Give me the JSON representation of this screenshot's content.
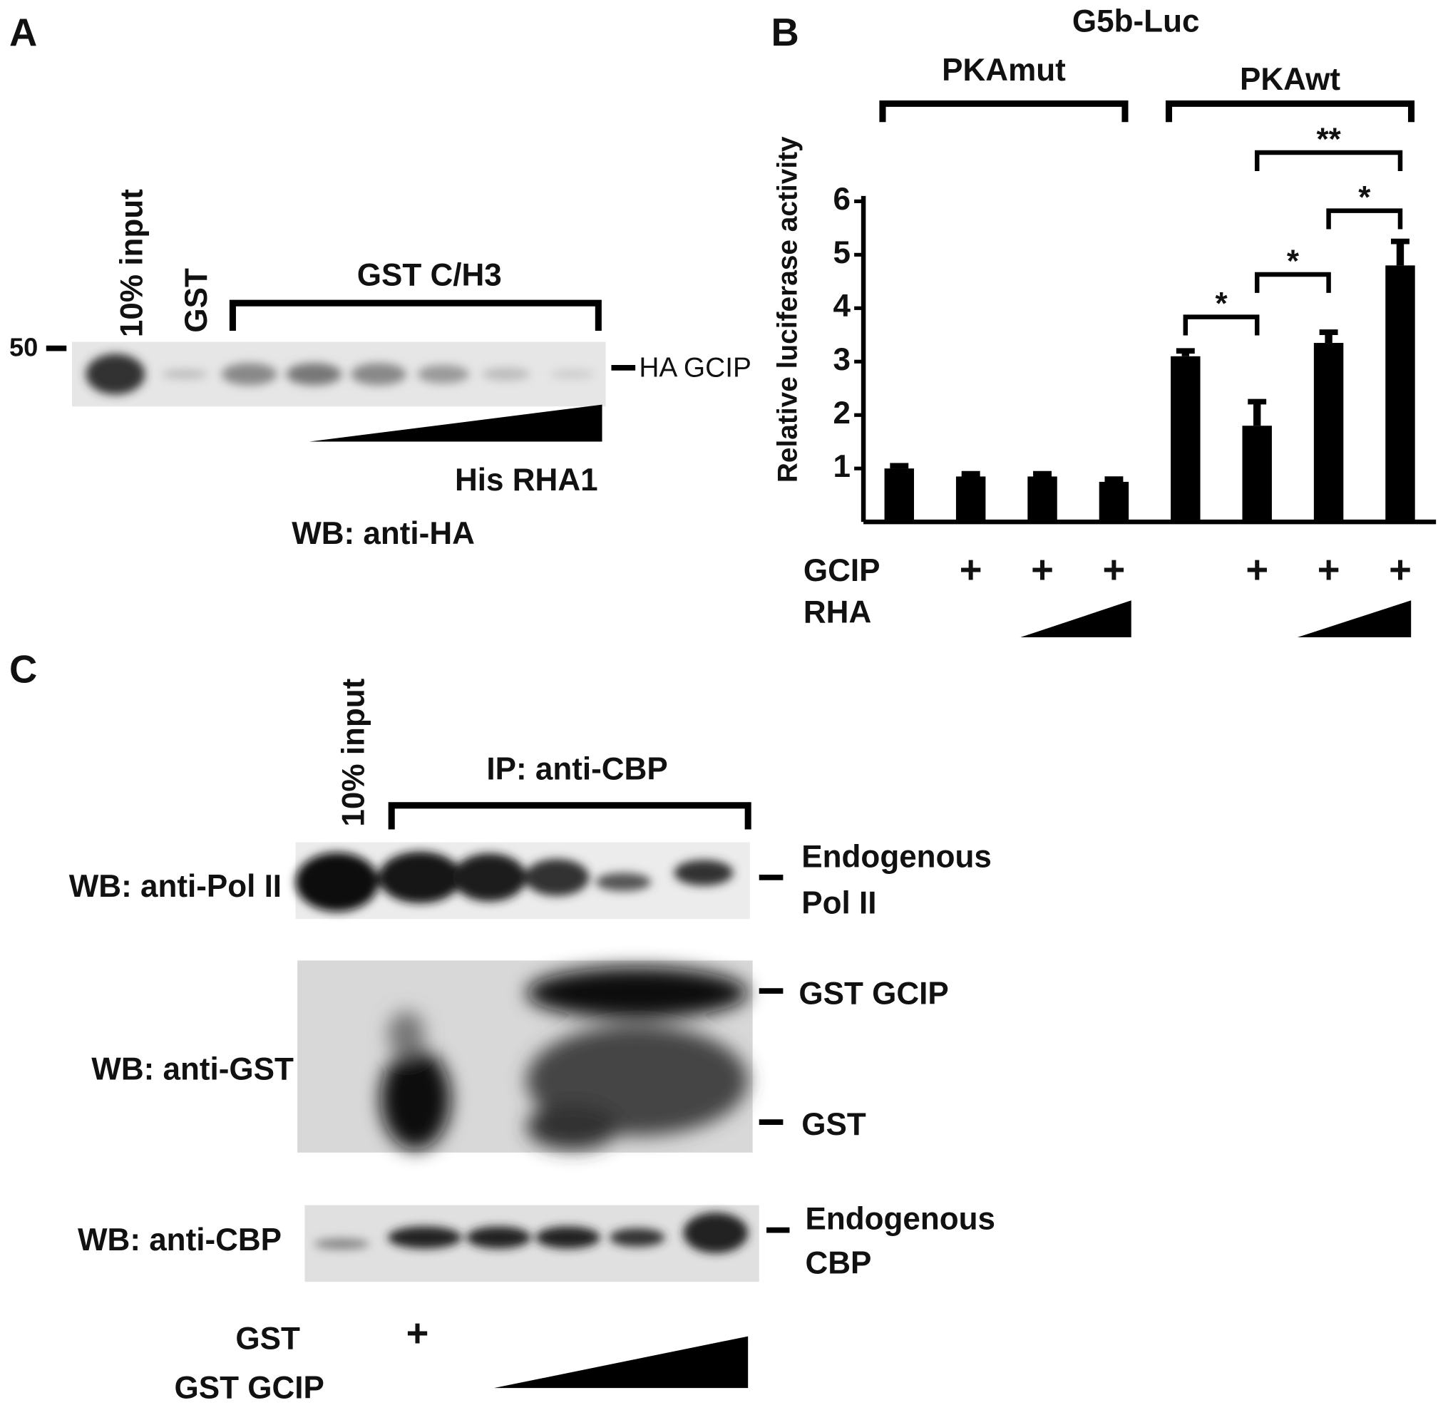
{
  "panel_a": {
    "label": "A",
    "lane_input": "10% input",
    "lane_gst": "GST",
    "bracket": "GST C/H3",
    "marker": "50",
    "band": "HA GCIP",
    "gradient": "His RHA1",
    "blot": "WB: anti-HA"
  },
  "chart_data": {
    "type": "bar",
    "panel": "B",
    "title": "G5b-Luc",
    "ylabel": "Relative luciferase activity",
    "groups": [
      {
        "name": "PKAmut",
        "bars": [
          0,
          3
        ]
      },
      {
        "name": "PKAwt",
        "bars": [
          4,
          7
        ]
      }
    ],
    "values": [
      1.0,
      0.85,
      0.85,
      0.75,
      3.1,
      1.8,
      3.35,
      4.8
    ],
    "errors": [
      0.05,
      0.05,
      0.05,
      0.05,
      0.1,
      0.45,
      0.2,
      0.45
    ],
    "color": "#000000",
    "ylim": [
      0,
      6.1
    ],
    "yticks": [
      1,
      2,
      3,
      4,
      5,
      6
    ],
    "rows": [
      {
        "name": "GCIP",
        "marks": [
          null,
          "+",
          "+",
          "+",
          null,
          "+",
          "+",
          "+"
        ]
      },
      {
        "name": "RHA"
      }
    ],
    "significance": [
      {
        "label": "*",
        "bars": [
          4,
          5
        ]
      },
      {
        "label": "*",
        "bars": [
          5,
          6
        ]
      },
      {
        "label": "*",
        "bars": [
          6,
          7
        ]
      },
      {
        "label": "**",
        "bars": [
          5,
          7
        ]
      }
    ]
  },
  "panel_c": {
    "label": "C",
    "lane_input": "10% input",
    "bracket": "IP: anti-CBP",
    "blot1": "WB: anti-Pol II",
    "band1a": "Endogenous",
    "band1b": "Pol II",
    "blot2": "WB: anti-GST",
    "band2a": "GST GCIP",
    "band2b": "GST",
    "blot3": "WB: anti-CBP",
    "band3a": "Endogenous",
    "band3b": "CBP",
    "row1": "GST",
    "row1_mark": "+",
    "row2": "GST GCIP"
  }
}
